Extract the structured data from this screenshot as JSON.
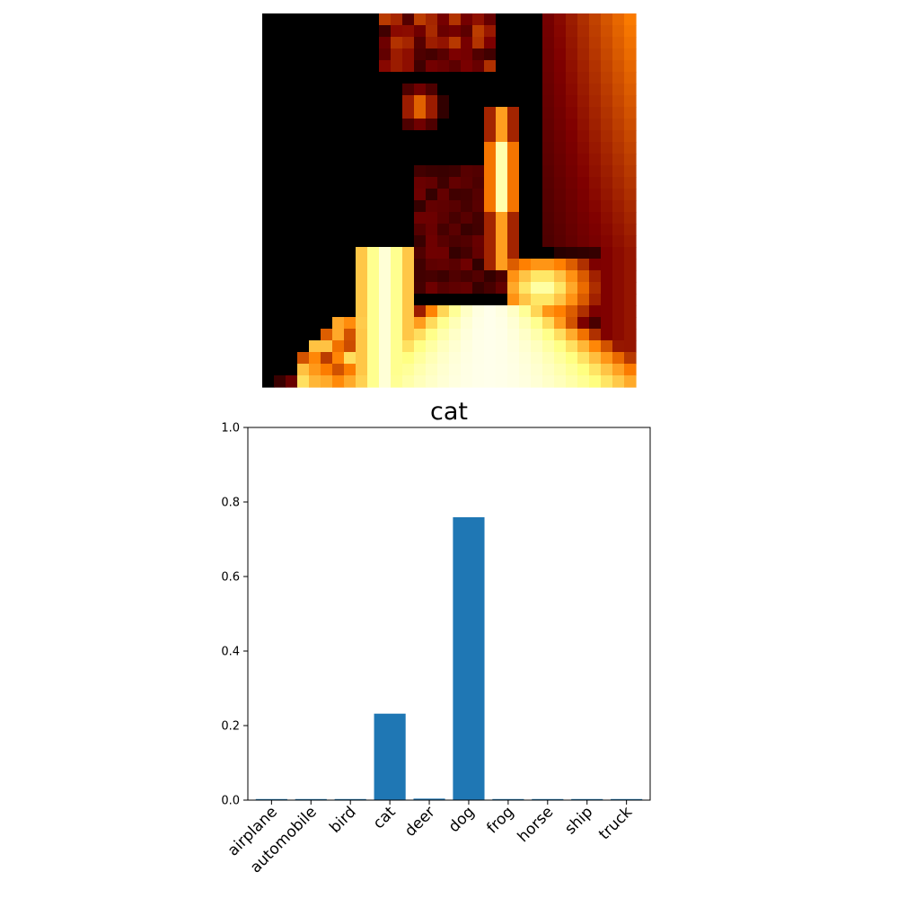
{
  "heatmap": {
    "colormap": "afmhot",
    "rows": 32,
    "cols": 32
  },
  "chart_data": [
    {
      "type": "heatmap",
      "title": "",
      "axes": "off",
      "colormap": "afmhot"
    },
    {
      "type": "bar",
      "title": "cat",
      "xlabel": "",
      "ylabel": "",
      "categories": [
        "airplane",
        "automobile",
        "bird",
        "cat",
        "deer",
        "dog",
        "frog",
        "horse",
        "ship",
        "truck"
      ],
      "values": [
        0.001,
        0.001,
        0.001,
        0.232,
        0.004,
        0.759,
        0.001,
        0.001,
        0.001,
        0.001
      ],
      "ylim": [
        0,
        1.0
      ],
      "yticks": [
        "0.0",
        "0.2",
        "0.4",
        "0.6",
        "0.8",
        "1.0"
      ],
      "bar_color": "#1f77b4",
      "grid": false,
      "legend": "none"
    }
  ]
}
